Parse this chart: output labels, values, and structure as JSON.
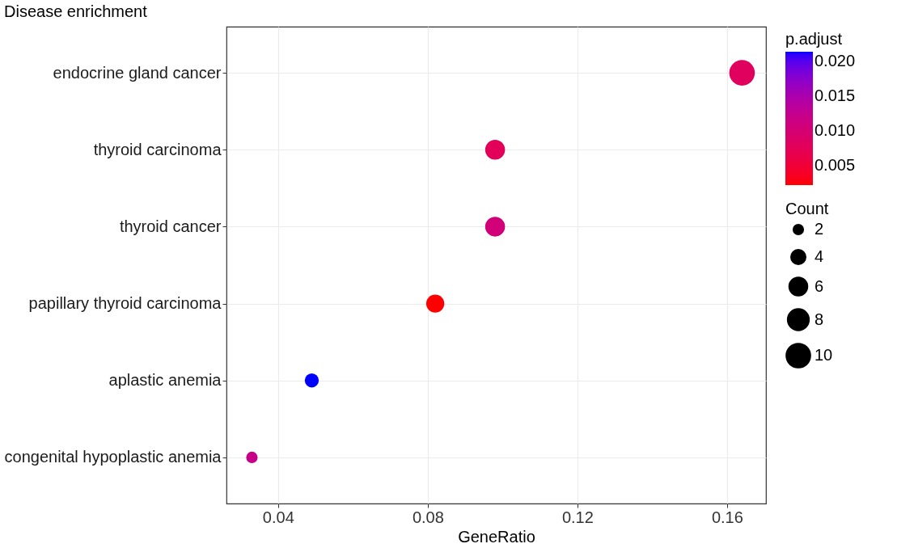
{
  "chart_data": {
    "type": "bubble",
    "orientation": "horizontal",
    "title": "Disease enrichment",
    "xlabel": "GeneRatio",
    "categories": [
      "endocrine gland cancer",
      "thyroid carcinoma",
      "thyroid cancer",
      "papillary thyroid carcinoma",
      "aplastic anemia",
      "congenital hypoplastic anemia"
    ],
    "values": [
      0.164,
      0.098,
      0.098,
      0.082,
      0.049,
      0.033
    ],
    "sizes": [
      10,
      6,
      6,
      5,
      3,
      2
    ],
    "size_legend": [
      2,
      4,
      6,
      8,
      10
    ],
    "legend_title": "Count",
    "cvalues": [
      0.0082,
      0.0075,
      0.0105,
      0.0022,
      0.0214,
      0.012
    ],
    "clabel": "p.adjust",
    "clim": [
      0.0022,
      0.0214
    ],
    "cticks": [
      0.005,
      {
        "value": 0.01,
        "label": "0.010"
      },
      0.015,
      {
        "value": 0.02,
        "label": "0.020"
      }
    ],
    "colors": [
      "#e0005e",
      "#e30058",
      "#d10078",
      "#ff0000",
      "#0000ff",
      "#c80088"
    ],
    "xlim": [
      0.0262,
      0.1704
    ],
    "xticks": [
      0.04,
      0.08,
      0.12,
      0.16
    ],
    "grid": true
  }
}
